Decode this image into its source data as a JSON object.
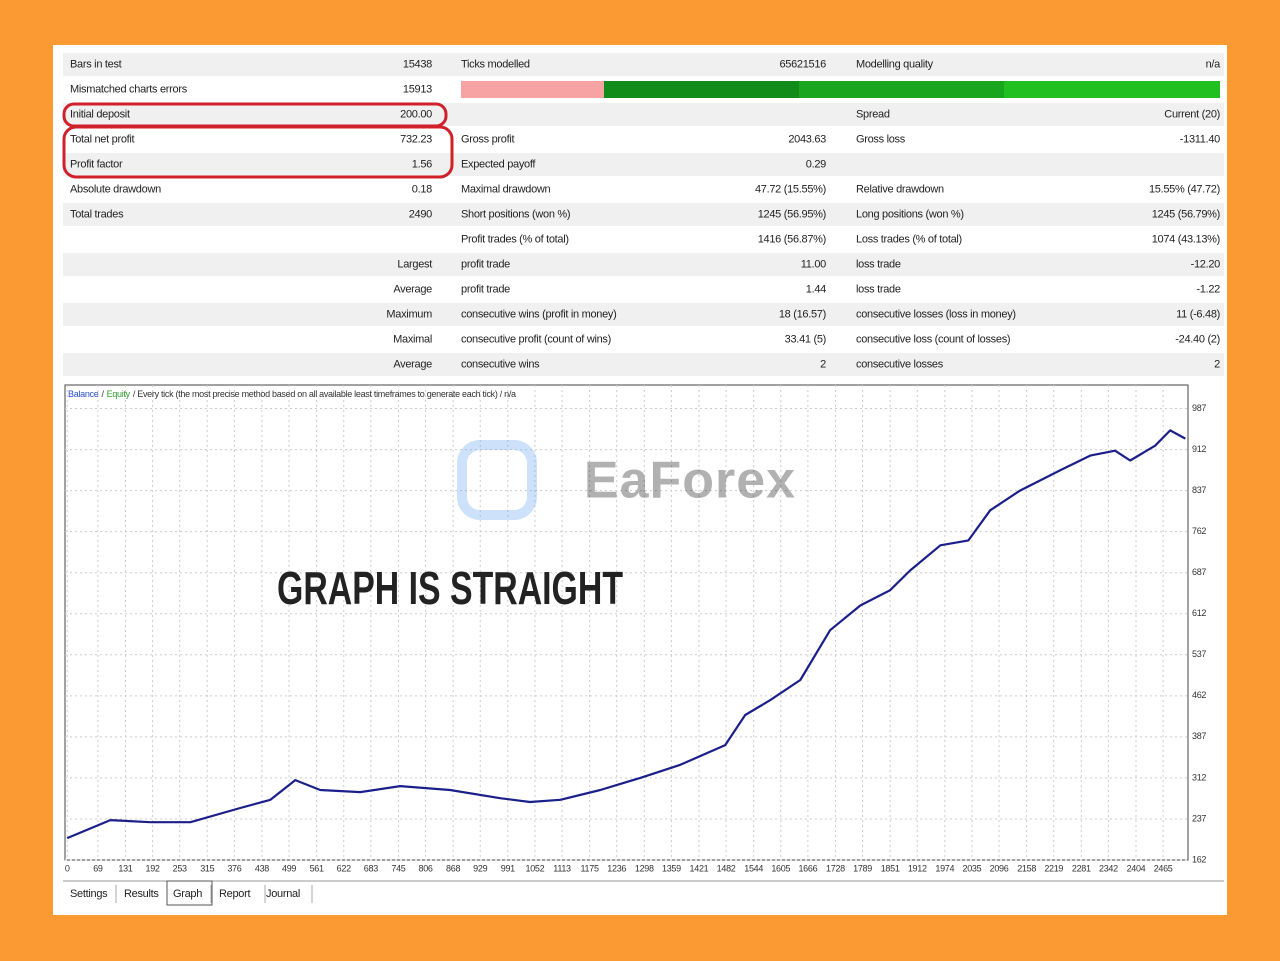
{
  "report": {
    "rows": [
      [
        "Bars in test",
        "15438",
        "Ticks modelled",
        "65621516",
        "Modelling quality",
        "n/a"
      ],
      [
        "Mismatched charts errors",
        "15913",
        null,
        null,
        null,
        null
      ],
      [
        "Initial deposit",
        "200.00",
        null,
        null,
        "Spread",
        "Current (20)"
      ],
      [
        "Total net profit",
        "732.23",
        "Gross profit",
        "2043.63",
        "Gross loss",
        "-1311.40"
      ],
      [
        "Profit factor",
        "1.56",
        "Expected payoff",
        "0.29",
        null,
        null
      ],
      [
        "Absolute drawdown",
        "0.18",
        "Maximal drawdown",
        "47.72 (15.55%)",
        "Relative drawdown",
        "15.55% (47.72)"
      ],
      [
        "Total trades",
        "2490",
        "Short positions (won %)",
        "1245 (56.95%)",
        "Long positions (won %)",
        "1245 (56.79%)"
      ],
      [
        null,
        null,
        "Profit trades (% of total)",
        "1416 (56.87%)",
        "Loss trades (% of total)",
        "1074 (43.13%)"
      ],
      [
        null,
        "Largest",
        "profit trade",
        "11.00",
        "loss trade",
        "-12.20"
      ],
      [
        null,
        "Average",
        "profit trade",
        "1.44",
        "loss trade",
        "-1.22"
      ],
      [
        null,
        "Maximum",
        "consecutive wins (profit in money)",
        "18 (16.57)",
        "consecutive losses (loss in money)",
        "11 (-6.48)"
      ],
      [
        null,
        "Maximal",
        "consecutive profit (count of wins)",
        "33.41 (5)",
        "consecutive loss (count of losses)",
        "-24.40 (2)"
      ],
      [
        null,
        "Average",
        "consecutive wins",
        "2",
        "consecutive losses",
        "2"
      ]
    ]
  },
  "chart_data": {
    "type": "line",
    "legend_separator": "/",
    "subtitle": "/ Every tick (the most precise method based on all available least timeframes to generate each tick) / n/a",
    "annotation": "GRAPH IS STRAIGHT",
    "x": [
      0,
      97,
      187,
      277,
      389,
      457,
      513,
      569,
      659,
      749,
      861,
      974,
      1041,
      1109,
      1199,
      1289,
      1379,
      1480,
      1525,
      1581,
      1649,
      1716,
      1784,
      1851,
      1896,
      1964,
      2027,
      2076,
      2143,
      2233,
      2301,
      2357,
      2391,
      2447,
      2481,
      2515
    ],
    "series": [
      {
        "name": "Balance",
        "color": "#1b1f8a",
        "label_color": "#2a4fd0",
        "values": [
          202,
          235,
          231,
          231,
          257,
          272,
          308,
          290,
          286,
          297,
          290,
          275,
          268,
          272,
          290,
          312,
          336,
          372,
          427,
          454,
          491,
          582,
          627,
          655,
          691,
          737,
          746,
          801,
          837,
          874,
          901,
          910,
          892,
          919,
          947,
          932
        ]
      },
      {
        "name": "Equity",
        "color": "#2e9e2e",
        "label_color": "#2e9e2e",
        "values": [
          null,
          null,
          null,
          null,
          null,
          null,
          null,
          null,
          null,
          null,
          null,
          null,
          null,
          null,
          null,
          null,
          null,
          null,
          null,
          null,
          null,
          null,
          null,
          null,
          null,
          null,
          null,
          null,
          null,
          null,
          null,
          null,
          null,
          null,
          null,
          null
        ]
      }
    ],
    "xlim": [
      -5,
      2521
    ],
    "xticks": [
      0,
      69,
      131,
      192,
      253,
      315,
      376,
      438,
      499,
      561,
      622,
      683,
      745,
      806,
      868,
      929,
      991,
      1052,
      1113,
      1175,
      1236,
      1298,
      1359,
      1421,
      1482,
      1544,
      1605,
      1666,
      1728,
      1789,
      1851,
      1912,
      1974,
      2035,
      2096,
      2158,
      2219,
      2281,
      2342,
      2404,
      2465
    ],
    "ylim": [
      162,
      1030
    ],
    "yticks": [
      162,
      237,
      312,
      387,
      462,
      537,
      612,
      687,
      762,
      837,
      912,
      987
    ],
    "grid": true
  },
  "watermark": "EaForex",
  "tabs": [
    "Settings",
    "Results",
    "Graph",
    "Report",
    "Journal"
  ]
}
